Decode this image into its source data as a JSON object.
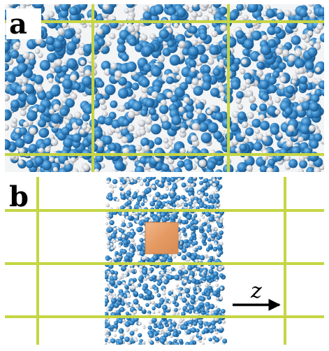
{
  "figure": {
    "panel_a": {
      "label": "a"
    },
    "panel_b": {
      "label": "b",
      "axis_label": "z"
    }
  },
  "colors": {
    "grid_line": "#c5d544",
    "molecule_blue": "#2f7fc0",
    "molecule_white": "#cfd3d8",
    "probe_box": "#e9a36c"
  },
  "icons": {
    "axis_arrow": "arrow-right-icon"
  }
}
